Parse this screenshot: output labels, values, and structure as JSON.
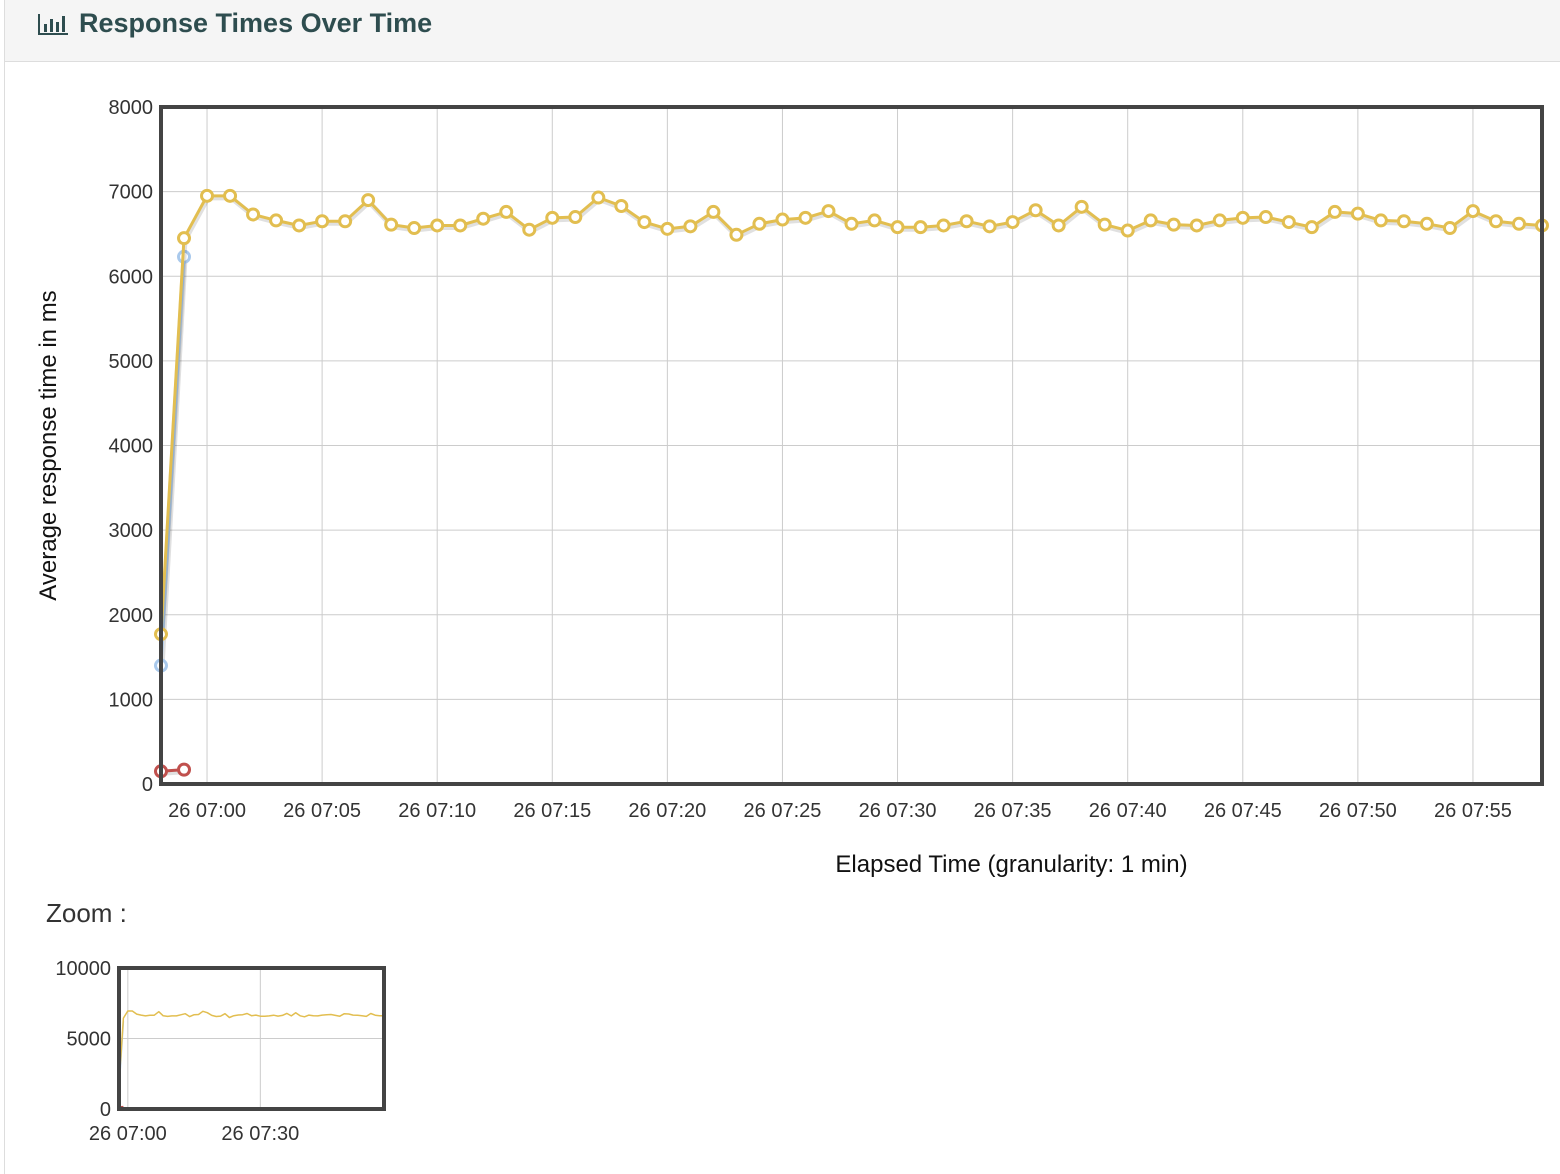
{
  "panel": {
    "title": "Response Times Over Time",
    "icon": "bar-chart-icon"
  },
  "zoom": {
    "label": "Zoom :"
  },
  "colors": {
    "series_main": "#e2be50",
    "series_blue": "#a9c9ec",
    "series_red": "#c0504d",
    "grid": "#cccccc",
    "axis": "#444444"
  },
  "chart_data": [
    {
      "type": "line",
      "title": "",
      "xlabel": "Elapsed Time (granularity: 1 min)",
      "ylabel": "Average response time in ms",
      "x_unit": "minutes (26 06:58 to 26 07:58)",
      "xlim": [
        "26 06:58",
        "26 07:58"
      ],
      "ylim": [
        0,
        8000
      ],
      "yticks": [
        0,
        1000,
        2000,
        3000,
        4000,
        5000,
        6000,
        7000,
        8000
      ],
      "xticks": [
        "26 07:00",
        "26 07:05",
        "26 07:10",
        "26 07:15",
        "26 07:20",
        "26 07:25",
        "26 07:30",
        "26 07:35",
        "26 07:40",
        "26 07:45",
        "26 07:50",
        "26 07:55"
      ],
      "grid": true,
      "legend": "none",
      "series": [
        {
          "color": "#c0504d",
          "x": [
            "26 06:58",
            "26 06:59"
          ],
          "values": [
            150,
            170
          ]
        },
        {
          "color": "#a9c9ec",
          "x": [
            "26 06:58",
            "26 06:59"
          ],
          "values": [
            1400,
            6230
          ]
        },
        {
          "color": "#e2be50",
          "x": [
            "26 06:58",
            "26 06:59",
            "26 07:00",
            "26 07:01",
            "26 07:02",
            "26 07:03",
            "26 07:04",
            "26 07:05",
            "26 07:06",
            "26 07:07",
            "26 07:08",
            "26 07:09",
            "26 07:10",
            "26 07:11",
            "26 07:12",
            "26 07:13",
            "26 07:14",
            "26 07:15",
            "26 07:16",
            "26 07:17",
            "26 07:18",
            "26 07:19",
            "26 07:20",
            "26 07:21",
            "26 07:22",
            "26 07:23",
            "26 07:24",
            "26 07:25",
            "26 07:26",
            "26 07:27",
            "26 07:28",
            "26 07:29",
            "26 07:30",
            "26 07:31",
            "26 07:32",
            "26 07:33",
            "26 07:34",
            "26 07:35",
            "26 07:36",
            "26 07:37",
            "26 07:38",
            "26 07:39",
            "26 07:40",
            "26 07:41",
            "26 07:42",
            "26 07:43",
            "26 07:44",
            "26 07:45",
            "26 07:46",
            "26 07:47",
            "26 07:48",
            "26 07:49",
            "26 07:50",
            "26 07:51",
            "26 07:52",
            "26 07:53",
            "26 07:54",
            "26 07:55",
            "26 07:56",
            "26 07:57",
            "26 07:58"
          ],
          "values": [
            1770,
            6450,
            6950,
            6950,
            6730,
            6660,
            6600,
            6650,
            6650,
            6900,
            6610,
            6570,
            6600,
            6600,
            6680,
            6760,
            6550,
            6690,
            6700,
            6930,
            6830,
            6640,
            6560,
            6590,
            6760,
            6490,
            6620,
            6670,
            6690,
            6770,
            6620,
            6660,
            6580,
            6580,
            6600,
            6650,
            6590,
            6640,
            6780,
            6600,
            6820,
            6610,
            6540,
            6660,
            6610,
            6600,
            6660,
            6690,
            6700,
            6640,
            6580,
            6760,
            6740,
            6660,
            6650,
            6620,
            6570,
            6770,
            6650,
            6620,
            6600
          ]
        }
      ]
    },
    {
      "type": "line",
      "title": "",
      "xlabel": "",
      "ylabel": "",
      "xlim": [
        "26 06:58",
        "26 07:58"
      ],
      "ylim": [
        0,
        10000
      ],
      "yticks": [
        0,
        5000,
        10000
      ],
      "xticks": [
        "26 07:00",
        "26 07:30"
      ],
      "grid": true,
      "legend": "none"
    }
  ]
}
